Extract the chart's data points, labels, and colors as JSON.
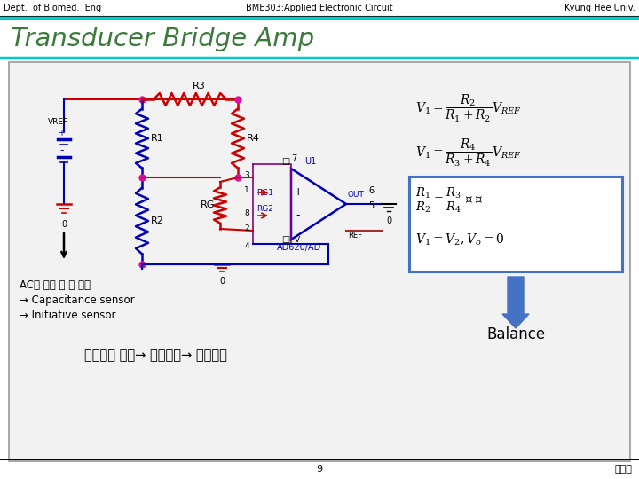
{
  "header_left": "Dept.  of Biomed.  Eng",
  "header_center": "BME303:Applied Electronic Circuit",
  "header_right": "Kyung Hee Univ.",
  "title": "Transducer Bridge Amp",
  "title_color": "#3B7A3B",
  "body_text1": "AC를 사용 할 수 있음",
  "body_text2": "→ Capacitance sensor",
  "body_text3": "→ Initiative sensor",
  "phys_text": "물리량의 변화→ 저항변화→ 전압변화",
  "balance_text": "Balance",
  "page_number": "9",
  "footer_right": "이규락",
  "arrow_color": "#4472C4",
  "box_color": "#4472C4",
  "circuit_red": "#CC0000",
  "circuit_blue": "#0000BB",
  "circuit_purple": "#880088",
  "circuit_pink": "#DD1199",
  "header_line_color": "#000000",
  "title_border_color": "#00CCCC",
  "content_bg": "#f2f2f2",
  "content_border": "#999999"
}
